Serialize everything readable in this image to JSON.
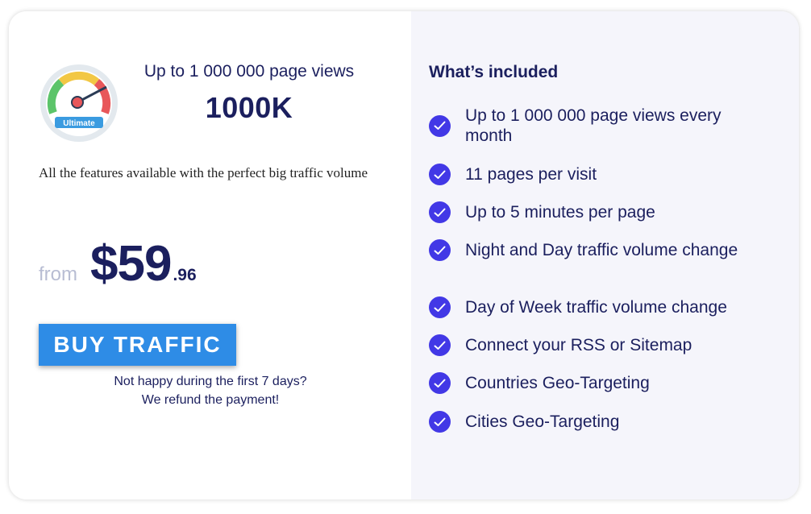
{
  "plan": {
    "badge_label": "Ultimate",
    "views_heading": "Up to 1 000 000 page views",
    "views_short": "1000K",
    "description": "All the features available with the perfect big traffic volume",
    "price_prefix": "from",
    "price_main": "$59",
    "price_cents": ".96",
    "buy_label": "BUY TRAFFIC",
    "refund_line1": "Not happy during the first 7 days?",
    "refund_line2": "We refund the payment!"
  },
  "included": {
    "title": "What’s included",
    "items": [
      {
        "label": "Up to 1 000 000 page views every month"
      },
      {
        "label": "11 pages per visit"
      },
      {
        "label": "Up to 5 minutes per page"
      },
      {
        "label": "Night and Day traffic volume change"
      },
      {
        "label": "Day of Week traffic volume change"
      },
      {
        "label": "Connect your RSS or Sitemap"
      },
      {
        "label": "Countries Geo-Targeting"
      },
      {
        "label": "Cities Geo-Targeting"
      }
    ]
  },
  "colors": {
    "accent_button": "#2e8ce6",
    "check_icon": "#4238e6",
    "heading_text": "#1b1f5e",
    "right_panel_bg": "#f5f5fb",
    "price_prefix": "#b8bdd3"
  },
  "icons": {
    "gauge": "speedometer-gauge-icon",
    "check": "check-circle-icon"
  }
}
